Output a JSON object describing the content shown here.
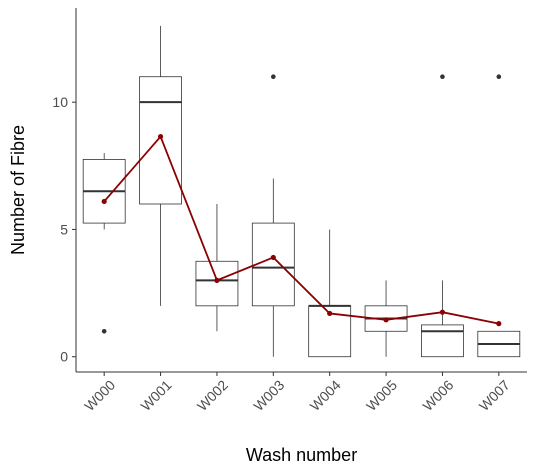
{
  "chart_data": {
    "type": "box",
    "xlabel": "Wash number",
    "ylabel": "Number of Fibre",
    "ylim": [
      -0.6,
      13.7
    ],
    "y_ticks": [
      0,
      5,
      10
    ],
    "y_tick_labels": [
      "0",
      "5",
      "10"
    ],
    "grid": false,
    "categories": [
      "W000",
      "W001",
      "W002",
      "W003",
      "W004",
      "W005",
      "W006",
      "W007"
    ],
    "boxes": [
      {
        "category": "W000",
        "whisker_low": 5,
        "q1": 5.25,
        "median": 6.5,
        "q3": 7.75,
        "whisker_high": 8,
        "outliers": [
          1
        ]
      },
      {
        "category": "W001",
        "whisker_low": 2,
        "q1": 6,
        "median": 10,
        "q3": 11,
        "whisker_high": 13,
        "outliers": []
      },
      {
        "category": "W002",
        "whisker_low": 1,
        "q1": 2,
        "median": 3,
        "q3": 3.75,
        "whisker_high": 6,
        "outliers": []
      },
      {
        "category": "W003",
        "whisker_low": 0,
        "q1": 2,
        "median": 3.5,
        "q3": 5.25,
        "whisker_high": 7,
        "outliers": [
          11
        ]
      },
      {
        "category": "W004",
        "whisker_low": 0,
        "q1": 0,
        "median": 2,
        "q3": 2,
        "whisker_high": 5,
        "outliers": []
      },
      {
        "category": "W005",
        "whisker_low": 0,
        "q1": 1,
        "median": 1.5,
        "q3": 2,
        "whisker_high": 3,
        "outliers": []
      },
      {
        "category": "W006",
        "whisker_low": 0,
        "q1": 0,
        "median": 1,
        "q3": 1.25,
        "whisker_high": 3,
        "outliers": [
          11
        ]
      },
      {
        "category": "W007",
        "whisker_low": 0,
        "q1": 0,
        "median": 0.5,
        "q3": 1,
        "whisker_high": 1,
        "outliers": [
          11
        ]
      }
    ],
    "mean_line": {
      "values": [
        6.1,
        8.65,
        3.0,
        3.9,
        1.7,
        1.45,
        1.75,
        1.3
      ],
      "color": "#8b0000"
    },
    "colors": {
      "box_stroke": "#333333",
      "outlier": "#333333",
      "axis": "#333333",
      "tick_label": "#4d4d4d"
    }
  }
}
